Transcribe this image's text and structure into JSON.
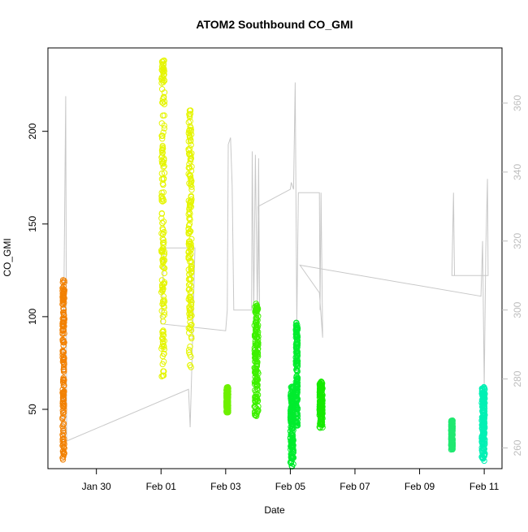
{
  "chart_data": {
    "type": "scatter",
    "title": "ATOM2 Southbound CO_GMI",
    "xlabel": "Date",
    "ylabel": "CO_GMI",
    "x_ticks": [
      "Jan 30",
      "Feb 01",
      "Feb 03",
      "Feb 05",
      "Feb 07",
      "Feb 09",
      "Feb 11"
    ],
    "x_tick_days": [
      0,
      2,
      4,
      6,
      8,
      10,
      12
    ],
    "x_range_days": [
      -1.5,
      12.55
    ],
    "y_ticks": [
      50,
      100,
      150,
      200
    ],
    "ylim": [
      18,
      245
    ],
    "y2_ticks": [
      260,
      280,
      300,
      320,
      340,
      360
    ],
    "y2lim": [
      254,
      376
    ],
    "colors": {
      "c_orange": "#f28000",
      "c_yellow": "#e5f500",
      "c_green1": "#6ef000",
      "c_green2": "#3ef000",
      "c_green3": "#00ec2e",
      "c_green4": "#16ea00",
      "c_teal1": "#20e870",
      "c_teal2": "#00f0b4",
      "secondary_line": "#c8c8c8",
      "axis": "#000000",
      "y2_axis": "#bdbdbd"
    },
    "clusters": [
      {
        "x": -1.02,
        "xspan": 0.06,
        "ymin": 22,
        "ymax": 120,
        "color": "c_orange"
      },
      {
        "x": 2.06,
        "xspan": 0.1,
        "ymin": 67,
        "ymax": 240,
        "color": "c_yellow"
      },
      {
        "x": 2.9,
        "xspan": 0.1,
        "ymin": 72,
        "ymax": 213,
        "color": "c_yellow"
      },
      {
        "x": 4.05,
        "xspan": 0.06,
        "ymin": 48,
        "ymax": 62,
        "color": "c_green1"
      },
      {
        "x": 4.95,
        "xspan": 0.12,
        "ymin": 46,
        "ymax": 107,
        "color": "c_green2"
      },
      {
        "x": 6.05,
        "xspan": 0.1,
        "ymin": 19,
        "ymax": 63,
        "color": "c_green3"
      },
      {
        "x": 6.2,
        "xspan": 0.06,
        "ymin": 40,
        "ymax": 97,
        "color": "c_green3"
      },
      {
        "x": 6.95,
        "xspan": 0.1,
        "ymin": 40,
        "ymax": 65,
        "color": "c_green4"
      },
      {
        "x": 11.0,
        "xspan": 0.05,
        "ymin": 28,
        "ymax": 44,
        "color": "c_teal1"
      },
      {
        "x": 11.97,
        "xspan": 0.1,
        "ymin": 22,
        "ymax": 62,
        "color": "c_teal2"
      }
    ],
    "secondary_series": [
      {
        "x": -1.05,
        "y": 258
      },
      {
        "x": -0.95,
        "y": 362
      },
      {
        "x": -0.92,
        "y": 262
      },
      {
        "x": 2.85,
        "y": 277
      },
      {
        "x": 2.9,
        "y": 266
      },
      {
        "x": 2.95,
        "y": 282
      },
      {
        "x": 3.05,
        "y": 318
      },
      {
        "x": 2.9,
        "y": 318
      },
      {
        "x": 2.1,
        "y": 318
      },
      {
        "x": 2.0,
        "y": 296
      },
      {
        "x": 4.0,
        "y": 294
      },
      {
        "x": 4.05,
        "y": 300
      },
      {
        "x": 4.08,
        "y": 348
      },
      {
        "x": 4.15,
        "y": 350
      },
      {
        "x": 4.2,
        "y": 336
      },
      {
        "x": 4.25,
        "y": 300
      },
      {
        "x": 4.8,
        "y": 300
      },
      {
        "x": 4.82,
        "y": 346
      },
      {
        "x": 4.87,
        "y": 300
      },
      {
        "x": 4.92,
        "y": 345
      },
      {
        "x": 4.98,
        "y": 300
      },
      {
        "x": 5.02,
        "y": 344
      },
      {
        "x": 5.05,
        "y": 300
      },
      {
        "x": 5.0,
        "y": 330
      },
      {
        "x": 6.0,
        "y": 335
      },
      {
        "x": 6.03,
        "y": 337
      },
      {
        "x": 6.1,
        "y": 335
      },
      {
        "x": 6.15,
        "y": 366
      },
      {
        "x": 6.2,
        "y": 296
      },
      {
        "x": 6.25,
        "y": 334
      },
      {
        "x": 6.9,
        "y": 334
      },
      {
        "x": 6.92,
        "y": 300
      },
      {
        "x": 6.95,
        "y": 334
      },
      {
        "x": 7.0,
        "y": 292
      },
      {
        "x": 6.9,
        "y": 305
      },
      {
        "x": 6.3,
        "y": 313
      },
      {
        "x": 11.9,
        "y": 304
      },
      {
        "x": 11.95,
        "y": 320
      },
      {
        "x": 12.0,
        "y": 278
      },
      {
        "x": 12.05,
        "y": 318
      },
      {
        "x": 12.1,
        "y": 338
      },
      {
        "x": 12.12,
        "y": 310
      },
      {
        "x": 11.0,
        "y": 310
      },
      {
        "x": 11.05,
        "y": 334
      },
      {
        "x": 11.08,
        "y": 310
      }
    ]
  }
}
